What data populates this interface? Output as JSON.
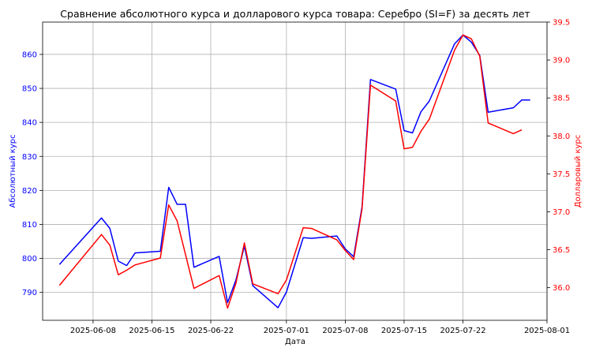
{
  "chart_data": {
    "type": "line",
    "title": "Сравнение абсолютного курса и долларового курса товара: Серебро (SI=F) за десять лет",
    "xlabel": "Дата",
    "ylabel_left": "Абсолютный курс",
    "ylabel_right": "Долларовый курс",
    "xlim": [
      "2025-06-02",
      "2025-08-01"
    ],
    "ylim_left": [
      781.8,
      869.5
    ],
    "ylim_right": [
      35.57,
      39.5
    ],
    "x_tick_labels": [
      "2025-06-08",
      "2025-06-15",
      "2025-06-22",
      "2025-07-01",
      "2025-07-08",
      "2025-07-15",
      "2025-07-22",
      "2025-08-01"
    ],
    "y_left_ticks": [
      790,
      800,
      810,
      820,
      830,
      840,
      850,
      860
    ],
    "y_right_ticks": [
      "36.0",
      "36.5",
      "37.0",
      "37.5",
      "38.0",
      "38.5",
      "39.0",
      "39.5"
    ],
    "grid": true,
    "colors": {
      "left": "#0000ff",
      "right": "#ff0000"
    },
    "series": [
      {
        "axis": "left",
        "color": "#0000ff",
        "points": [
          [
            "2025-06-04",
            798.2
          ],
          [
            "2025-06-09",
            811.9
          ],
          [
            "2025-06-10",
            808.8
          ],
          [
            "2025-06-11",
            799.2
          ],
          [
            "2025-06-12",
            797.9
          ],
          [
            "2025-06-13",
            801.6
          ],
          [
            "2025-06-16",
            802.1
          ],
          [
            "2025-06-17",
            820.9
          ],
          [
            "2025-06-18",
            815.9
          ],
          [
            "2025-06-19",
            815.9
          ],
          [
            "2025-06-20",
            797.4
          ],
          [
            "2025-06-23",
            800.6
          ],
          [
            "2025-06-24",
            787.0
          ],
          [
            "2025-06-25",
            793.7
          ],
          [
            "2025-06-26",
            803.6
          ],
          [
            "2025-06-27",
            792.0
          ],
          [
            "2025-06-30",
            785.5
          ],
          [
            "2025-07-01",
            790.1
          ],
          [
            "2025-07-03",
            806.1
          ],
          [
            "2025-07-04",
            805.9
          ],
          [
            "2025-07-07",
            806.6
          ],
          [
            "2025-07-08",
            802.8
          ],
          [
            "2025-07-09",
            800.5
          ],
          [
            "2025-07-10",
            815.2
          ],
          [
            "2025-07-11",
            852.6
          ],
          [
            "2025-07-14",
            849.8
          ],
          [
            "2025-07-15",
            837.6
          ],
          [
            "2025-07-16",
            836.9
          ],
          [
            "2025-07-17",
            843.1
          ],
          [
            "2025-07-18",
            846.3
          ],
          [
            "2025-07-21",
            863.1
          ],
          [
            "2025-07-22",
            865.7
          ],
          [
            "2025-07-23",
            863.6
          ],
          [
            "2025-07-24",
            859.7
          ],
          [
            "2025-07-25",
            843.0
          ],
          [
            "2025-07-28",
            844.3
          ],
          [
            "2025-07-29",
            846.6
          ],
          [
            "2025-07-30",
            846.6
          ]
        ]
      },
      {
        "axis": "right",
        "color": "#ff0000",
        "points": [
          [
            "2025-06-04",
            36.03
          ],
          [
            "2025-06-09",
            36.7
          ],
          [
            "2025-06-10",
            36.56
          ],
          [
            "2025-06-11",
            36.17
          ],
          [
            "2025-06-12",
            36.23
          ],
          [
            "2025-06-13",
            36.3
          ],
          [
            "2025-06-16",
            36.39
          ],
          [
            "2025-06-17",
            37.09
          ],
          [
            "2025-06-18",
            36.88
          ],
          [
            "2025-06-20",
            35.99
          ],
          [
            "2025-06-23",
            36.16
          ],
          [
            "2025-06-24",
            35.73
          ],
          [
            "2025-06-25",
            36.06
          ],
          [
            "2025-06-26",
            36.59
          ],
          [
            "2025-06-27",
            36.05
          ],
          [
            "2025-06-30",
            35.92
          ],
          [
            "2025-07-01",
            36.1
          ],
          [
            "2025-07-03",
            36.79
          ],
          [
            "2025-07-04",
            36.78
          ],
          [
            "2025-07-07",
            36.63
          ],
          [
            "2025-07-08",
            36.49
          ],
          [
            "2025-07-09",
            36.37
          ],
          [
            "2025-07-10",
            37.04
          ],
          [
            "2025-07-11",
            38.67
          ],
          [
            "2025-07-14",
            38.46
          ],
          [
            "2025-07-15",
            37.83
          ],
          [
            "2025-07-16",
            37.85
          ],
          [
            "2025-07-17",
            38.06
          ],
          [
            "2025-07-18",
            38.22
          ],
          [
            "2025-07-21",
            39.13
          ],
          [
            "2025-07-22",
            39.33
          ],
          [
            "2025-07-23",
            39.28
          ],
          [
            "2025-07-24",
            39.05
          ],
          [
            "2025-07-25",
            38.17
          ],
          [
            "2025-07-28",
            38.03
          ],
          [
            "2025-07-29",
            38.08
          ]
        ]
      }
    ]
  }
}
